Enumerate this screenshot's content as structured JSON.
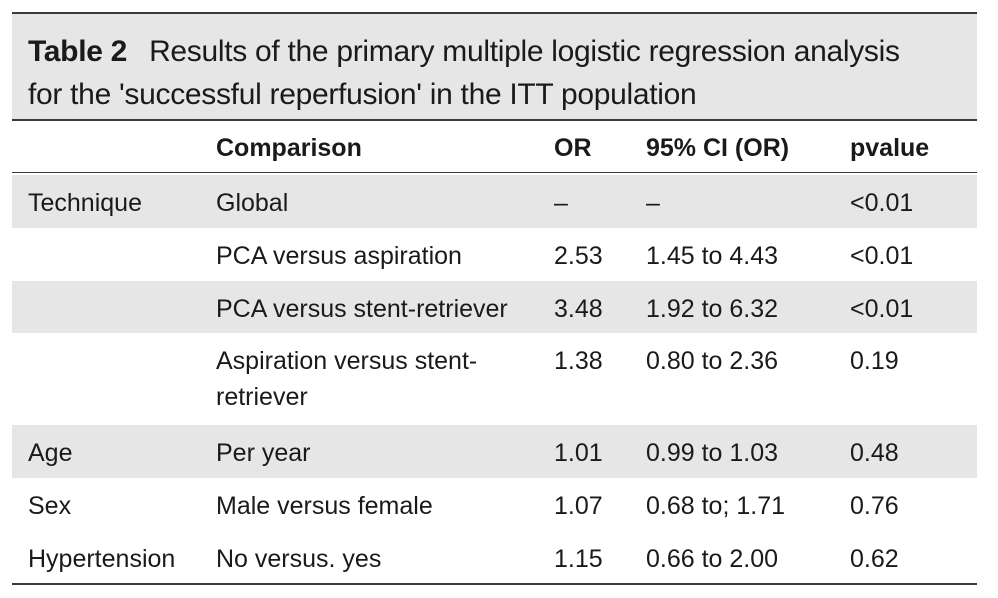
{
  "caption": {
    "label": "Table 2",
    "line1": "Results of the primary multiple logistic regression analysis",
    "line2": "for the 'successful reperfusion' in the ITT population"
  },
  "header": {
    "variable": "",
    "comparison": "Comparison",
    "or": "OR",
    "ci": "95% CI (OR)",
    "p": "pvalue"
  },
  "rows": [
    {
      "variable": "Technique",
      "comparison": "Global",
      "or": "–",
      "ci": "–",
      "p": "<0.01"
    },
    {
      "variable": "",
      "comparison": "PCA versus aspiration",
      "or": "2.53",
      "ci": "1.45 to 4.43",
      "p": "<0.01"
    },
    {
      "variable": "",
      "comparison": "PCA versus stent-retriever",
      "or": "3.48",
      "ci": "1.92 to 6.32",
      "p": "<0.01"
    },
    {
      "variable": "",
      "comparison": "Aspiration versus stent-retriever",
      "or": "1.38",
      "ci": "0.80 to 2.36",
      "p": "0.19"
    },
    {
      "variable": "Age",
      "comparison": "Per year",
      "or": "1.01",
      "ci": "0.99 to 1.03",
      "p": "0.48"
    },
    {
      "variable": "Sex",
      "comparison": "Male versus female",
      "or": "1.07",
      "ci": "0.68 to; 1.71",
      "p": "0.76"
    },
    {
      "variable": "Hypertension",
      "comparison": "No versus. yes",
      "or": "1.15",
      "ci": "0.66 to 2.00",
      "p": "0.62"
    }
  ],
  "colors": {
    "band": "#e6e6e6",
    "rule": "#3a3a3a",
    "text": "#1a1a1a"
  }
}
